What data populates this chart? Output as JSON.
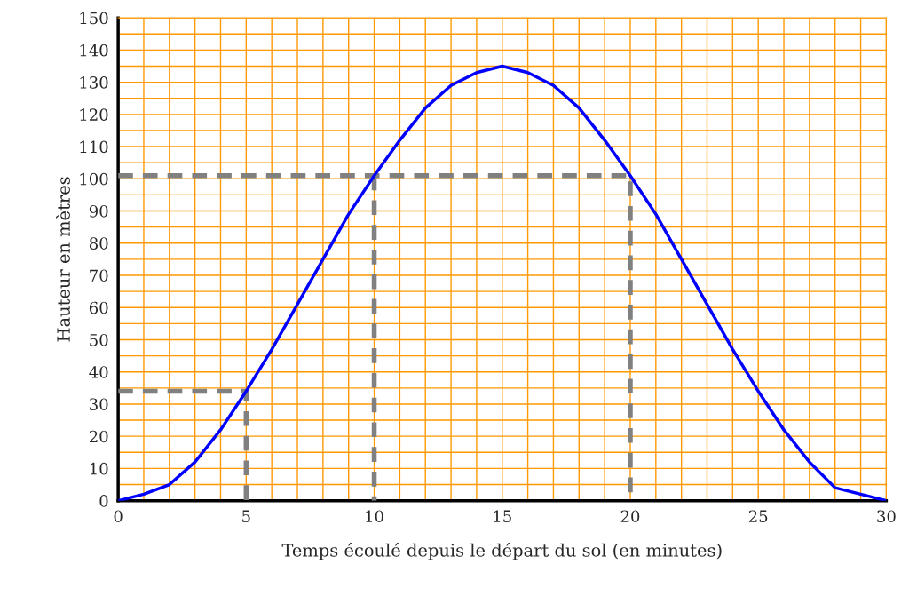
{
  "chart_data": {
    "type": "line",
    "xlabel": "Temps écoulé depuis le départ du sol (en minutes)",
    "ylabel": "Hauteur en mètres",
    "series": [
      {
        "color": "#0000ff",
        "line_style": "solid",
        "x": [
          0,
          1,
          2,
          3,
          4,
          5,
          6,
          7,
          8,
          9,
          10,
          11,
          12,
          13,
          14,
          15,
          16,
          17,
          18,
          19,
          20,
          21,
          22,
          23,
          24,
          25,
          26,
          27,
          28,
          29,
          30
        ],
        "values": [
          0,
          2,
          5,
          12,
          22,
          34,
          47,
          61,
          75,
          89,
          101,
          112,
          122,
          129,
          133,
          135,
          133,
          129,
          122,
          112,
          101,
          89,
          75,
          61,
          47,
          34,
          22,
          12,
          4,
          2,
          0
        ]
      },
      {
        "color": "#808080",
        "line_style": "dashed",
        "x": [
          0,
          5,
          5
        ],
        "values": [
          34,
          34,
          0
        ]
      },
      {
        "color": "#808080",
        "line_style": "dashed",
        "x": [
          0,
          20,
          20
        ],
        "values": [
          101,
          101,
          0
        ]
      },
      {
        "color": "#808080",
        "line_style": "dashed",
        "x": [
          10,
          10
        ],
        "values": [
          101,
          0
        ]
      }
    ],
    "xlim": [
      0,
      30
    ],
    "xticks": [
      0,
      {
        "value": 1,
        "label": null
      },
      {
        "value": 2,
        "label": null
      },
      {
        "value": 3,
        "label": null
      },
      {
        "value": 4,
        "label": null
      },
      5,
      {
        "value": 6,
        "label": null
      },
      {
        "value": 7,
        "label": null
      },
      {
        "value": 8,
        "label": null
      },
      {
        "value": 9,
        "label": null
      },
      10,
      {
        "value": 11,
        "label": null
      },
      {
        "value": 12,
        "label": null
      },
      {
        "value": 13,
        "label": null
      },
      {
        "value": 14,
        "label": null
      },
      15,
      {
        "value": 16,
        "label": null
      },
      {
        "value": 17,
        "label": null
      },
      {
        "value": 18,
        "label": null
      },
      {
        "value": 19,
        "label": null
      },
      20,
      {
        "value": 21,
        "label": null
      },
      {
        "value": 22,
        "label": null
      },
      {
        "value": 23,
        "label": null
      },
      {
        "value": 24,
        "label": null
      },
      25,
      {
        "value": 26,
        "label": null
      },
      {
        "value": 27,
        "label": null
      },
      {
        "value": 28,
        "label": null
      },
      {
        "value": 29,
        "label": null
      },
      30
    ],
    "ylim": [
      0,
      150
    ],
    "yticks": [
      0,
      {
        "value": 5,
        "label": null
      },
      10,
      {
        "value": 15,
        "label": null
      },
      20,
      {
        "value": 25,
        "label": null
      },
      30,
      {
        "value": 35,
        "label": null
      },
      40,
      {
        "value": 45,
        "label": null
      },
      50,
      {
        "value": 55,
        "label": null
      },
      60,
      {
        "value": 65,
        "label": null
      },
      70,
      {
        "value": 75,
        "label": null
      },
      80,
      {
        "value": 85,
        "label": null
      },
      90,
      {
        "value": 95,
        "label": null
      },
      100,
      {
        "value": 105,
        "label": null
      },
      110,
      {
        "value": 115,
        "label": null
      },
      120,
      {
        "value": 125,
        "label": null
      },
      130,
      {
        "value": 135,
        "label": null
      },
      140,
      {
        "value": 145,
        "label": null
      },
      150
    ],
    "grid": true,
    "marker": "none",
    "legend": false
  }
}
